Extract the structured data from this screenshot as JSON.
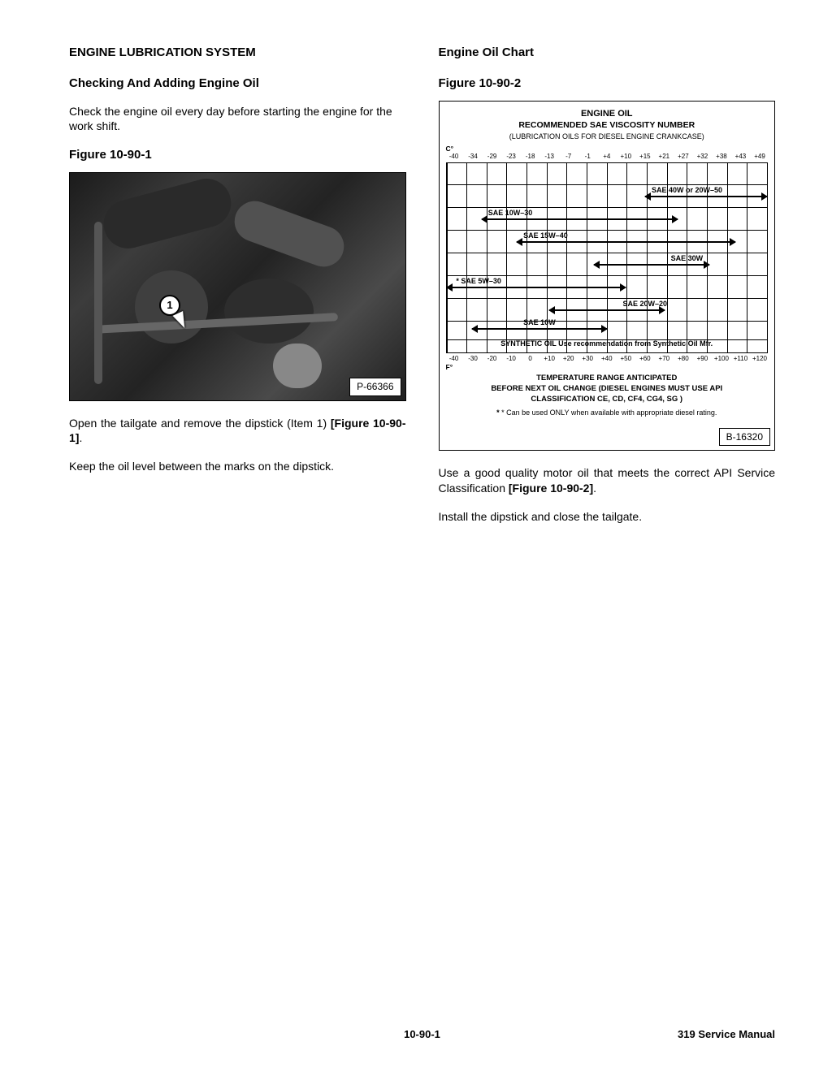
{
  "left": {
    "h1": "ENGINE LUBRICATION SYSTEM",
    "h2": "Checking And Adding Engine Oil",
    "p1": "Check the engine oil every day before starting the engine for the work shift.",
    "fig1_label": "Figure 10-90-1",
    "callout_num": "1",
    "photo_id": "P-66366",
    "p2a": "Open the tailgate and remove the dipstick (Item 1) ",
    "p2b": "[Figure 10-90-1]",
    "p2c": ".",
    "p3": "Keep the oil level between the marks on the dipstick."
  },
  "right": {
    "h1": "Engine Oil Chart",
    "fig2_label": "Figure 10-90-2",
    "chart": {
      "title": "ENGINE OIL",
      "subtitle": "RECOMMENDED SAE VISCOSITY NUMBER",
      "subtitle2": "(LUBRICATION OILS FOR DIESEL ENGINE CRANKCASE)",
      "unit_top": "C°",
      "ticks_c": [
        "-40",
        "-34",
        "-29",
        "-23",
        "-18",
        "-13",
        "-7",
        "-1",
        "+4",
        "+10",
        "+15",
        "+21",
        "+27",
        "+32",
        "+38",
        "+43",
        "+49"
      ],
      "unit_bottom": "F°",
      "ticks_f": [
        "-40",
        "-30",
        "-20",
        "-10",
        "0",
        "+10",
        "+20",
        "+30",
        "+40",
        "+50",
        "+60",
        "+70",
        "+80",
        "+90",
        "+100",
        "+110",
        "+120"
      ],
      "grid_vlines_pct": [
        0,
        6.25,
        12.5,
        18.75,
        25,
        31.25,
        37.5,
        43.75,
        50,
        56.25,
        62.5,
        68.75,
        75,
        81.25,
        87.5,
        93.75,
        100
      ],
      "grid_hrows_pct": [
        11,
        23,
        35,
        47,
        59,
        71,
        83,
        93
      ],
      "bars": [
        {
          "label": "SAE 40W or 20W–50",
          "left_pct": 62,
          "right_pct": 100,
          "row_pct": 17,
          "label_left_pct": 64,
          "label_top_offset": -13
        },
        {
          "label": "SAE 10W–30",
          "left_pct": 11,
          "right_pct": 72,
          "row_pct": 29,
          "label_left_pct": 13,
          "label_top_offset": -13
        },
        {
          "label": "SAE 15W–40",
          "left_pct": 22,
          "right_pct": 90,
          "row_pct": 41,
          "label_left_pct": 24,
          "label_top_offset": -13
        },
        {
          "label": "SAE 30W",
          "left_pct": 46,
          "right_pct": 82,
          "row_pct": 53,
          "label_left_pct": 70,
          "label_top_offset": -13
        },
        {
          "label": "* SAE 5W–30",
          "left_pct": 0,
          "right_pct": 56,
          "row_pct": 65,
          "label_left_pct": 3,
          "label_top_offset": -13
        },
        {
          "label": "SAE 20W–20",
          "left_pct": 32,
          "right_pct": 68,
          "row_pct": 77,
          "label_left_pct": 55,
          "label_top_offset": -13
        },
        {
          "label": "SAE 10W",
          "left_pct": 8,
          "right_pct": 50,
          "row_pct": 87,
          "label_left_pct": 24,
          "label_top_offset": -13
        }
      ],
      "synthetic_label": "SYNTHETIC OIL Use recommendation from Synthetic Oil Mfr.",
      "synthetic_row_pct": 95,
      "footer1": "TEMPERATURE RANGE ANTICIPATED",
      "footer2": "BEFORE NEXT OIL CHANGE (DIESEL ENGINES MUST USE API",
      "footer3": "CLASSIFICATION  CE, CD, CF4, CG4, SG )",
      "footnote": "* Can be used ONLY when available with appropriate diesel rating.",
      "chart_id": "B-16320"
    },
    "p1a": "Use a good quality motor oil that meets the correct API Service Classification ",
    "p1b": "[Figure 10-90-2]",
    "p1c": ".",
    "p2": "Install the dipstick and close the tailgate."
  },
  "footer": {
    "left": "",
    "center": "10-90-1",
    "right": "319 Service Manual"
  }
}
